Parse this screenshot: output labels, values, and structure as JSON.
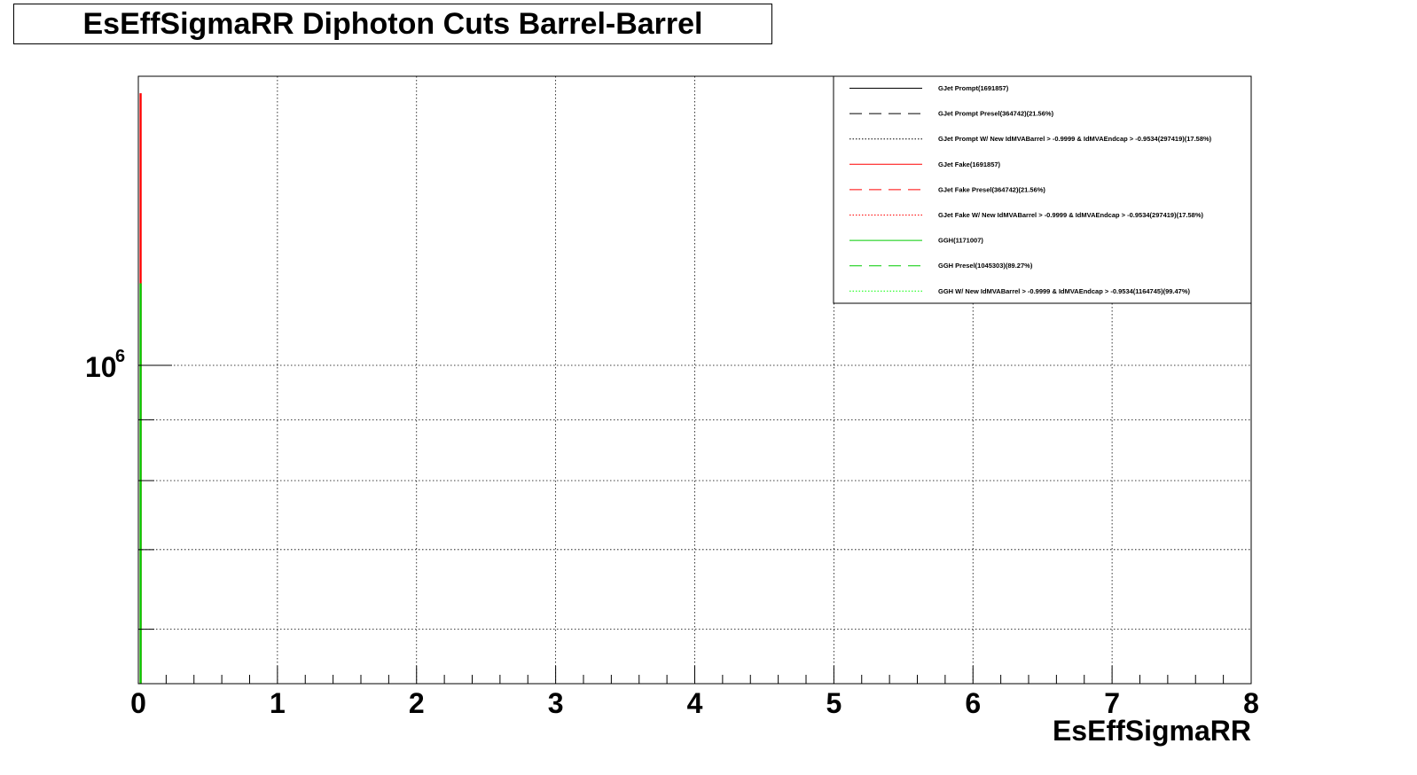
{
  "chart_data": {
    "type": "line",
    "title": "EsEffSigmaRR Diphoton Cuts Barrel-Barrel",
    "xlabel": "EsEffSigmaRR",
    "ylabel": "",
    "xlim": [
      0,
      8
    ],
    "ylim": [
      540000,
      1750000
    ],
    "y_scale": "log",
    "grid": true,
    "x_ticks": [
      "0",
      "1",
      "2",
      "3",
      "4",
      "5",
      "6",
      "7",
      "8"
    ],
    "y_tick_label": {
      "base": "10",
      "exponent": "6",
      "value": 1000000
    },
    "legend_position": "top-right",
    "legend": [
      {
        "label": "GJet Prompt(1691857)",
        "color": "#000000",
        "dash": "solid"
      },
      {
        "label": "GJet Prompt Presel(364742)(21.56%)",
        "color": "#000000",
        "dash": "dashed"
      },
      {
        "label": "GJet Prompt W/ New IdMVABarrel > -0.9999 & IdMVAEndcap > -0.9534(297419)(17.58%)",
        "color": "#000000",
        "dash": "dotted"
      },
      {
        "label": "GJet Fake(1691857)",
        "color": "#ff0000",
        "dash": "solid"
      },
      {
        "label": "GJet Fake Presel(364742)(21.56%)",
        "color": "#ff0000",
        "dash": "dashed"
      },
      {
        "label": "GJet Fake W/ New IdMVABarrel > -0.9999 & IdMVAEndcap > -0.9534(297419)(17.58%)",
        "color": "#ff0000",
        "dash": "dotted"
      },
      {
        "label": "GGH(1171007)",
        "color": "#00cc00",
        "dash": "solid"
      },
      {
        "label": "GGH Presel(1045303)(89.27%)",
        "color": "#00cc00",
        "dash": "dashed"
      },
      {
        "label": "GGH W/ New IdMVABarrel > -0.9999 & IdMVAEndcap > -0.9534(1164745)(99.47%)",
        "color": "#00ff00",
        "dash": "dotted"
      }
    ],
    "series": [
      {
        "color": "#ff0000",
        "x": [
          0,
          0.02
        ],
        "values": [
          1691857,
          1691857
        ]
      },
      {
        "color": "#00cc00",
        "x": [
          0,
          0.02
        ],
        "values": [
          1171007,
          1171007
        ]
      }
    ]
  }
}
